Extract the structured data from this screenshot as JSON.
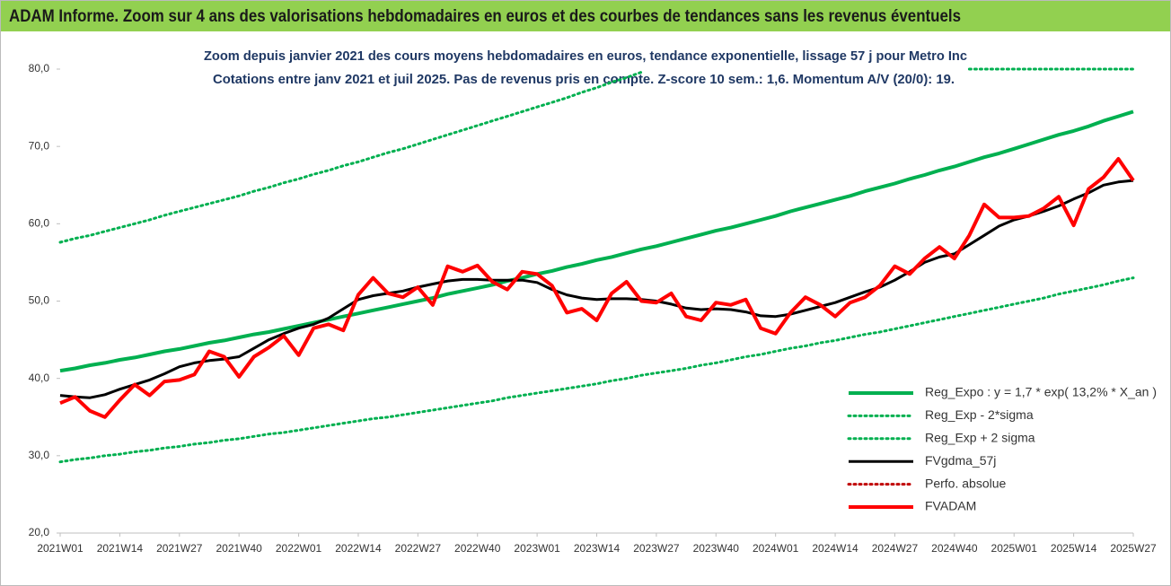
{
  "chart_data": {
    "type": "line",
    "title": "ADAM Informe. Zoom sur 4 ans des valorisations hebdomadaires en euros et des courbes de tendances sans les revenus éventuels",
    "subtitle": [
      "Zoom depuis janvier 2021 des cours moyens hebdomadaires en euros, tendance exponentielle, lissage 57 j pour Metro Inc",
      "Cotations entre janv 2021 et juil 2025. Pas de revenus pris en compte. Z-score 10 sem.: 1,6. Momentum A/V (20/0): 19."
    ],
    "categories": [
      "2021W01",
      null,
      null,
      null,
      "2021W14",
      null,
      null,
      null,
      "2021W27",
      null,
      null,
      null,
      "2021W40",
      null,
      null,
      null,
      "2022W01",
      null,
      null,
      null,
      "2022W14",
      null,
      null,
      null,
      "2022W27",
      null,
      null,
      null,
      "2022W40",
      null,
      null,
      null,
      "2023W01",
      null,
      null,
      null,
      "2023W14",
      null,
      null,
      null,
      "2023W27",
      null,
      null,
      null,
      "2023W40",
      null,
      null,
      null,
      "2024W01",
      null,
      null,
      null,
      "2024W14",
      null,
      null,
      null,
      "2024W27",
      null,
      null,
      null,
      "2024W40",
      null,
      null,
      null,
      "2025W01",
      null,
      null,
      null,
      "2025W14",
      null,
      null,
      null,
      "2025W27"
    ],
    "ylim": [
      20,
      80
    ],
    "yticks": [
      {
        "value": 20,
        "label": "20,0"
      },
      {
        "value": 30,
        "label": "30,0"
      },
      {
        "value": 40,
        "label": "40,0"
      },
      {
        "value": 50,
        "label": "50,0"
      },
      {
        "value": 60,
        "label": "60,0"
      },
      {
        "value": 70,
        "label": "70,0"
      },
      {
        "value": 80,
        "label": "80,0"
      }
    ],
    "grid": false,
    "legend": "bottom-right",
    "series": [
      {
        "name": "Reg_Expo : y = 1,7 * exp( 13,2% *  X_an )",
        "color": "#00b050",
        "style": "solid",
        "width": 4,
        "values": [
          41.0,
          41.3,
          41.7,
          42.0,
          42.4,
          42.7,
          43.1,
          43.5,
          43.8,
          44.2,
          44.6,
          44.9,
          45.3,
          45.7,
          46.0,
          46.4,
          46.8,
          47.2,
          47.6,
          48.0,
          48.4,
          48.8,
          49.2,
          49.6,
          50.0,
          50.4,
          50.9,
          51.3,
          51.7,
          52.1,
          52.6,
          53.0,
          53.5,
          53.9,
          54.4,
          54.8,
          55.3,
          55.7,
          56.2,
          56.7,
          57.1,
          57.6,
          58.1,
          58.6,
          59.1,
          59.5,
          60.0,
          60.5,
          61.0,
          61.6,
          62.1,
          62.6,
          63.1,
          63.6,
          64.2,
          64.7,
          65.2,
          65.8,
          66.3,
          66.9,
          67.4,
          68.0,
          68.6,
          69.1,
          69.7,
          70.3,
          70.9,
          71.5,
          72.0,
          72.6,
          73.3,
          73.9,
          74.5
        ]
      },
      {
        "name": "Reg_Exp - 2*sigma",
        "color": "#00b050",
        "style": "dotted",
        "width": 3,
        "values": [
          29.2,
          29.5,
          29.7,
          30.0,
          30.2,
          30.5,
          30.7,
          31.0,
          31.2,
          31.5,
          31.7,
          32.0,
          32.2,
          32.5,
          32.8,
          33.0,
          33.3,
          33.6,
          33.9,
          34.2,
          34.5,
          34.8,
          35.0,
          35.3,
          35.6,
          35.9,
          36.2,
          36.5,
          36.8,
          37.1,
          37.5,
          37.8,
          38.1,
          38.4,
          38.7,
          39.0,
          39.3,
          39.7,
          40.0,
          40.4,
          40.7,
          41.0,
          41.3,
          41.7,
          42.0,
          42.4,
          42.8,
          43.1,
          43.5,
          43.9,
          44.2,
          44.6,
          44.9,
          45.3,
          45.7,
          46.0,
          46.4,
          46.8,
          47.2,
          47.6,
          48.0,
          48.4,
          48.8,
          49.2,
          49.6,
          50.0,
          50.4,
          50.9,
          51.3,
          51.7,
          52.1,
          52.6,
          53.0
        ]
      },
      {
        "name": "Reg_Exp + 2 sigma",
        "color": "#00b050",
        "style": "dotted",
        "width": 3,
        "values": [
          57.6,
          58.1,
          58.5,
          59.0,
          59.5,
          60.0,
          60.5,
          61.1,
          61.6,
          62.1,
          62.6,
          63.1,
          63.6,
          64.2,
          64.7,
          65.3,
          65.8,
          66.4,
          66.9,
          67.5,
          68.0,
          68.6,
          69.2,
          69.7,
          70.3,
          70.9,
          71.5,
          72.1,
          72.7,
          73.3,
          73.9,
          74.5,
          75.1,
          75.7,
          76.3,
          77.0,
          77.6,
          78.3,
          78.9,
          79.6,
          null,
          null,
          null,
          null,
          null,
          null,
          null,
          null,
          null,
          null,
          null,
          null,
          null,
          null,
          null,
          null,
          null,
          null,
          null,
          null,
          null,
          80,
          80,
          80,
          80,
          80,
          80,
          80,
          80,
          80,
          80,
          80,
          80
        ]
      },
      {
        "name": "FVgdma_57j",
        "color": "#000000",
        "style": "solid",
        "width": 3,
        "values": [
          37.8,
          37.6,
          37.5,
          37.9,
          38.6,
          39.2,
          39.8,
          40.6,
          41.5,
          42.0,
          42.3,
          42.5,
          42.8,
          43.9,
          45.0,
          45.8,
          46.5,
          47.0,
          47.8,
          49.0,
          50.2,
          50.7,
          51.0,
          51.3,
          51.8,
          52.2,
          52.6,
          52.8,
          52.8,
          52.7,
          52.7,
          52.7,
          52.4,
          51.5,
          50.8,
          50.4,
          50.2,
          50.3,
          50.3,
          50.2,
          50.0,
          49.6,
          49.1,
          48.9,
          49.0,
          48.9,
          48.6,
          48.1,
          48.0,
          48.3,
          48.8,
          49.3,
          49.8,
          50.5,
          51.2,
          51.8,
          52.7,
          53.8,
          55.0,
          55.7,
          56.1,
          57.3,
          58.5,
          59.7,
          60.5,
          61.0,
          61.6,
          62.3,
          63.2,
          64.0,
          65.0,
          65.4,
          65.6
        ]
      },
      {
        "name": "Perfo. absolue",
        "color": "#c00000",
        "style": "dotted",
        "width": 3,
        "values": [
          null,
          null,
          null,
          null,
          null,
          null,
          null,
          null,
          null,
          null,
          null,
          null,
          null,
          null,
          null,
          null,
          null,
          null,
          null,
          null,
          null,
          null,
          null,
          null,
          null,
          null,
          null,
          null,
          null,
          null,
          null,
          null,
          null,
          null,
          null,
          null,
          null,
          null,
          null,
          null,
          null,
          null,
          null,
          null,
          null,
          null,
          null,
          null,
          null,
          null,
          null,
          null,
          null,
          null,
          null,
          null,
          null,
          null,
          null,
          null,
          null,
          null,
          null,
          null,
          null,
          null,
          null,
          null,
          null,
          null,
          null,
          null,
          null
        ]
      },
      {
        "name": "FVADAM",
        "color": "#ff0000",
        "style": "solid",
        "width": 4,
        "values": [
          36.8,
          37.6,
          35.8,
          35.0,
          37.2,
          39.2,
          37.8,
          39.6,
          39.8,
          40.5,
          43.5,
          42.8,
          40.2,
          42.8,
          44.0,
          45.5,
          43.0,
          46.5,
          47.0,
          46.2,
          50.8,
          53.0,
          51.0,
          50.5,
          51.8,
          49.5,
          54.5,
          53.8,
          54.6,
          52.5,
          51.5,
          53.8,
          53.5,
          52.0,
          48.5,
          49.0,
          47.5,
          51.0,
          52.5,
          50.0,
          49.8,
          51.0,
          48.0,
          47.5,
          49.8,
          49.5,
          50.2,
          46.5,
          45.8,
          48.5,
          50.5,
          49.5,
          48.0,
          49.8,
          50.5,
          52.0,
          54.5,
          53.5,
          55.5,
          57.0,
          55.5,
          58.5,
          62.5,
          60.8,
          60.8,
          61.0,
          62.0,
          63.5,
          59.8,
          64.5,
          66.0,
          68.4,
          65.6
        ]
      }
    ]
  }
}
